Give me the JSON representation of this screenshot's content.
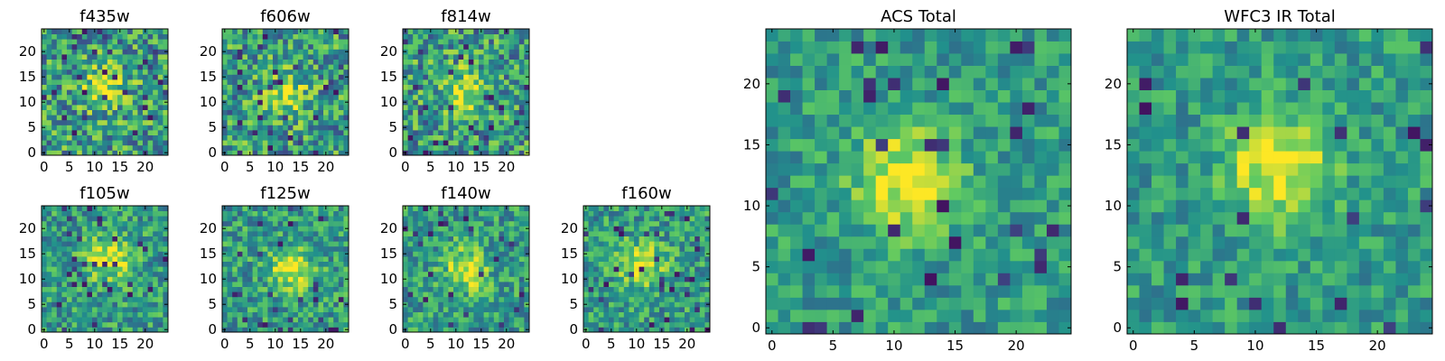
{
  "colormap": [
    "#440154",
    "#3b528b",
    "#21918c",
    "#5ec962",
    "#fde725"
  ],
  "chart_data": [
    {
      "type": "heatmap",
      "title": "f435w",
      "shape": [
        25,
        25
      ],
      "xlim": [
        0,
        24
      ],
      "ylim": [
        0,
        24
      ],
      "xticks": [
        0,
        5,
        10,
        15,
        20
      ],
      "yticks": [
        0,
        5,
        10,
        15,
        20
      ],
      "source": "Gaussian blob centred near (12, 13) over pixel noise",
      "peak": [
        12,
        13
      ],
      "noise": "high"
    },
    {
      "type": "heatmap",
      "title": "f606w",
      "shape": [
        25,
        25
      ],
      "xlim": [
        0,
        24
      ],
      "ylim": [
        0,
        24
      ],
      "xticks": [
        0,
        5,
        10,
        15,
        20
      ],
      "yticks": [
        0,
        5,
        10,
        15,
        20
      ],
      "source": "Gaussian blob centred near (12, 12) over pixel noise",
      "peak": [
        12,
        12
      ],
      "noise": "high"
    },
    {
      "type": "heatmap",
      "title": "f814w",
      "shape": [
        25,
        25
      ],
      "xlim": [
        0,
        24
      ],
      "ylim": [
        0,
        24
      ],
      "xticks": [
        0,
        5,
        10,
        15,
        20
      ],
      "yticks": [
        0,
        5,
        10,
        15,
        20
      ],
      "source": "Gaussian blob centred near (12, 12) over pixel noise",
      "peak": [
        12,
        12
      ],
      "noise": "high"
    },
    {
      "type": "heatmap",
      "title": "f105w",
      "shape": [
        25,
        25
      ],
      "xlim": [
        0,
        24
      ],
      "ylim": [
        0,
        24
      ],
      "xticks": [
        0,
        5,
        10,
        15,
        20
      ],
      "yticks": [
        0,
        5,
        10,
        15,
        20
      ],
      "source": "Gaussian blob centred near (13, 14) over pixel noise",
      "peak": [
        13,
        14
      ],
      "noise": "medium"
    },
    {
      "type": "heatmap",
      "title": "f125w",
      "shape": [
        25,
        25
      ],
      "xlim": [
        0,
        24
      ],
      "ylim": [
        0,
        24
      ],
      "xticks": [
        0,
        5,
        10,
        15,
        20
      ],
      "yticks": [
        0,
        5,
        10,
        15,
        20
      ],
      "source": "Gaussian blob centred near (13, 12) over pixel noise",
      "peak": [
        13,
        12
      ],
      "noise": "medium"
    },
    {
      "type": "heatmap",
      "title": "f140w",
      "shape": [
        25,
        25
      ],
      "xlim": [
        0,
        24
      ],
      "ylim": [
        0,
        24
      ],
      "xticks": [
        0,
        5,
        10,
        15,
        20
      ],
      "yticks": [
        0,
        5,
        10,
        15,
        20
      ],
      "source": "Gaussian blob centred near (12, 12) over pixel noise",
      "peak": [
        12,
        12
      ],
      "noise": "medium"
    },
    {
      "type": "heatmap",
      "title": "f160w",
      "shape": [
        25,
        25
      ],
      "xlim": [
        0,
        24
      ],
      "ylim": [
        0,
        24
      ],
      "xticks": [
        0,
        5,
        10,
        15,
        20
      ],
      "yticks": [
        0,
        5,
        10,
        15,
        20
      ],
      "source": "Gaussian blob centred near (11, 13) over pixel noise",
      "peak": [
        11,
        13
      ],
      "noise": "medium"
    },
    {
      "type": "heatmap",
      "title": "ACS Total",
      "shape": [
        25,
        25
      ],
      "xlim": [
        0,
        24
      ],
      "ylim": [
        0,
        24
      ],
      "xticks": [
        0,
        5,
        10,
        15,
        20
      ],
      "yticks": [
        0,
        5,
        10,
        15,
        20
      ],
      "source": "Gaussian blob centred near (11, 12) over pixel noise",
      "peak": [
        11,
        12
      ],
      "noise": "low"
    },
    {
      "type": "heatmap",
      "title": "WFC3 IR Total",
      "shape": [
        25,
        25
      ],
      "xlim": [
        0,
        24
      ],
      "ylim": [
        0,
        24
      ],
      "xticks": [
        0,
        5,
        10,
        15,
        20
      ],
      "yticks": [
        0,
        5,
        10,
        15,
        20
      ],
      "source": "Gaussian blob centred near (12, 13) over pixel noise",
      "peak": [
        12,
        13
      ],
      "noise": "low"
    }
  ]
}
